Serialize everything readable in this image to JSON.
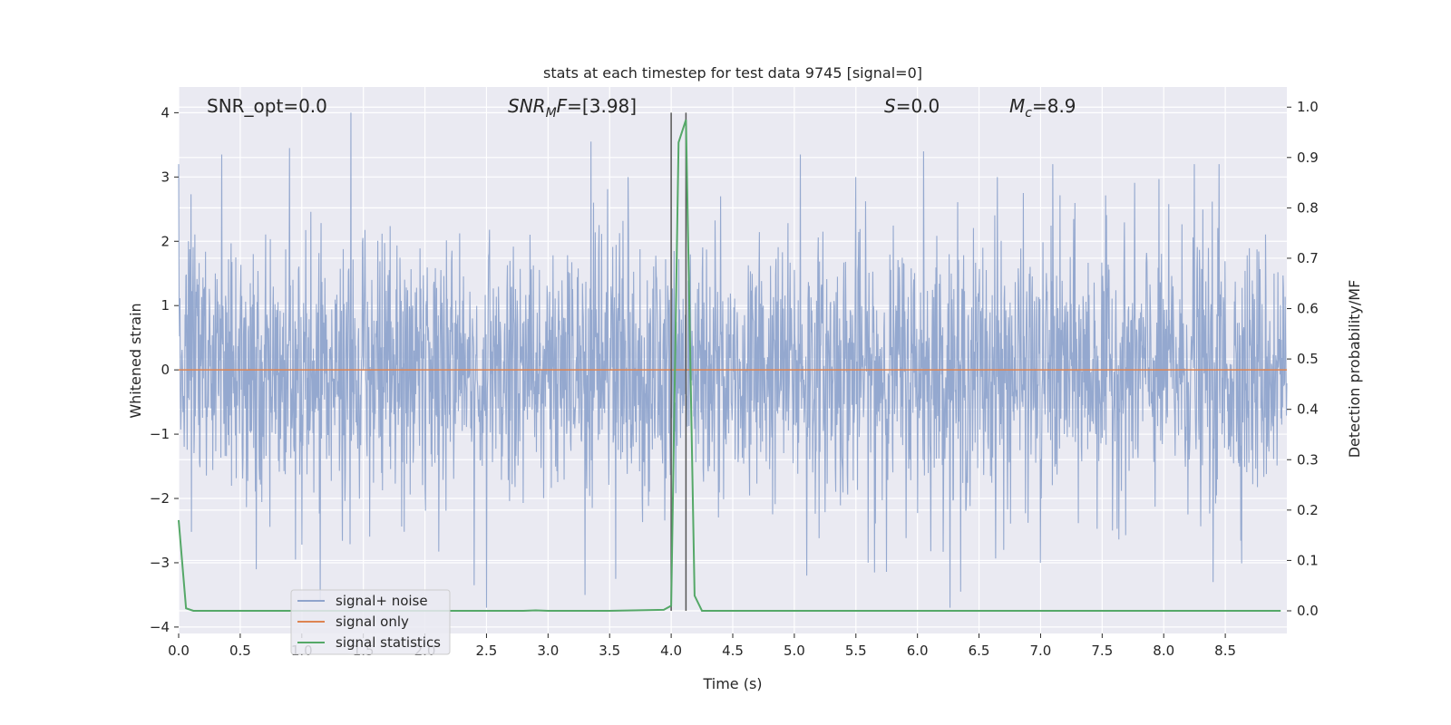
{
  "chart_data": {
    "type": "line",
    "title": "stats at each timestep for test data 9745 [signal=0]",
    "xlabel": "Time (s)",
    "ylabel_left": "Whitened strain",
    "ylabel_right": "Detection probability/MF",
    "xlim": [
      0.0,
      9.0
    ],
    "ylim_left": [
      -4.1,
      4.4
    ],
    "ylim_right": [
      -0.045,
      1.04
    ],
    "x_ticks": [
      "0.0",
      "0.5",
      "1.0",
      "1.5",
      "2.0",
      "2.5",
      "3.0",
      "3.5",
      "4.0",
      "4.5",
      "5.0",
      "5.5",
      "6.0",
      "6.5",
      "7.0",
      "7.5",
      "8.0",
      "8.5"
    ],
    "y_ticks_left": [
      "-4",
      "-3",
      "-2",
      "-1",
      "0",
      "1",
      "2",
      "3",
      "4"
    ],
    "y_ticks_right": [
      "0.0",
      "0.1",
      "0.2",
      "0.3",
      "0.4",
      "0.5",
      "0.6",
      "0.7",
      "0.8",
      "0.9",
      "1.0"
    ],
    "grid": true,
    "annotations": {
      "snr_opt": "SNR_opt=0.0",
      "snr_mf_italic": "SNR",
      "snr_mf_sub": "M",
      "snr_mf_italic2": "F",
      "snr_mf_value": "=[3.98]",
      "s_italic": "S",
      "s_value": "=0.0",
      "mc_italic": "M",
      "mc_sub": "c",
      "mc_value": "=8.9"
    },
    "vlines_x": [
      4.0,
      4.12
    ],
    "series": [
      {
        "name": "signal+ noise",
        "color": "#8fa4cc",
        "description_range": [
          -3.7,
          4.0
        ],
        "x_start": 0.0,
        "x_end": 9.0,
        "peaks": [
          [
            0.0,
            3.2
          ],
          [
            0.35,
            3.35
          ],
          [
            0.9,
            3.45
          ],
          [
            1.15,
            2.95
          ],
          [
            1.4,
            4.0
          ],
          [
            2.5,
            2.95
          ],
          [
            3.35,
            3.55
          ],
          [
            3.65,
            3.0
          ],
          [
            5.05,
            3.35
          ],
          [
            5.5,
            3.0
          ],
          [
            6.05,
            3.4
          ],
          [
            6.65,
            3.0
          ],
          [
            7.1,
            3.2
          ],
          [
            8.25,
            3.2
          ],
          [
            8.45,
            3.2
          ],
          [
            0.95,
            -2.95
          ],
          [
            1.15,
            -3.6
          ],
          [
            2.4,
            -3.35
          ],
          [
            2.5,
            -3.7
          ],
          [
            3.3,
            -3.5
          ],
          [
            3.55,
            -3.25
          ],
          [
            5.1,
            -3.2
          ],
          [
            5.65,
            -3.15
          ],
          [
            6.35,
            -3.45
          ],
          [
            6.7,
            -2.8
          ],
          [
            7.0,
            -3.0
          ],
          [
            8.4,
            -3.3
          ]
        ]
      },
      {
        "name": "signal only",
        "color": "#dd8452",
        "x": [
          0.0,
          9.0
        ],
        "y": [
          0.0,
          0.0
        ]
      },
      {
        "name": "signal statistics",
        "color": "#55a868",
        "axis": "right",
        "x": [
          0.0,
          0.06,
          0.12,
          0.5,
          1.0,
          1.5,
          2.0,
          2.5,
          2.8,
          2.9,
          3.0,
          3.5,
          3.94,
          4.0,
          4.06,
          4.12,
          4.19,
          4.25,
          4.5,
          5.0,
          6.0,
          7.0,
          8.0,
          8.95
        ],
        "y": [
          0.18,
          0.005,
          0.0,
          0.0,
          0.0,
          0.0,
          0.0,
          0.0,
          0.0,
          0.001,
          0.0,
          0.0,
          0.002,
          0.01,
          0.93,
          0.975,
          0.03,
          0.0,
          0.0,
          0.0,
          0.0,
          0.0,
          0.0,
          0.0
        ]
      }
    ],
    "legend": {
      "placement": "lower left",
      "entries": [
        {
          "label": "signal+ noise",
          "color": "#8fa4cc"
        },
        {
          "label": "signal only",
          "color": "#dd8452"
        },
        {
          "label": "signal statistics",
          "color": "#55a868"
        }
      ]
    }
  }
}
